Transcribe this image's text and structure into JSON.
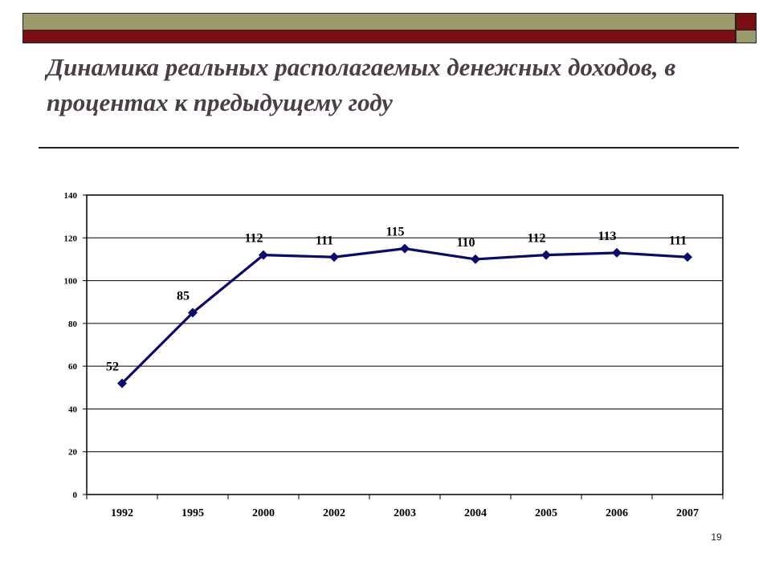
{
  "slide": {
    "title": "Динамика реальных располагаемых денежных доходов, в процентах к предыдущему году",
    "page_number": "19"
  },
  "colors": {
    "header_olive": "#9b9a6b",
    "header_red": "#7a0e15",
    "series_line": "#0a0a6e",
    "title_text": "#4b4040"
  },
  "chart_data": {
    "type": "line",
    "title": "",
    "xlabel": "",
    "ylabel": "",
    "ylim": [
      0,
      140
    ],
    "yticks": [
      "0",
      "20",
      "40",
      "60",
      "80",
      "100",
      "120",
      "140"
    ],
    "grid": true,
    "categories": [
      "1992",
      "1995",
      "2000",
      "2002",
      "2003",
      "2004",
      "2005",
      "2006",
      "2007"
    ],
    "series": [
      {
        "values": [
          52,
          85,
          112,
          111,
          115,
          110,
          112,
          113,
          111
        ],
        "labels": [
          "52",
          "85",
          "112",
          "111",
          "115",
          "110",
          "112",
          "113",
          "111"
        ]
      }
    ]
  }
}
